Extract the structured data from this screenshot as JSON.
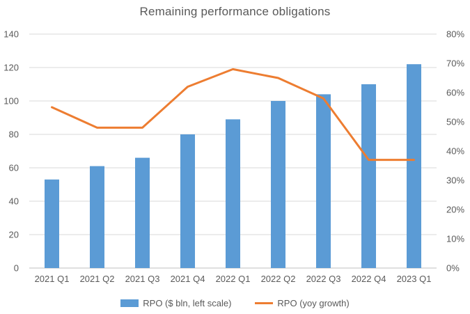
{
  "chart_data": {
    "type": "bar",
    "subtype": "combo-bar-line",
    "title": "Remaining performance obligations",
    "categories": [
      "2021 Q1",
      "2021 Q2",
      "2021 Q3",
      "2021 Q4",
      "2022 Q1",
      "2022 Q2",
      "2022 Q3",
      "2022 Q4",
      "2023 Q1"
    ],
    "series": [
      {
        "name": "RPO ($ bln, left scale)",
        "type": "bar",
        "axis": "left",
        "color": "#5B9BD5",
        "values": [
          53,
          61,
          66,
          80,
          89,
          100,
          104,
          110,
          122
        ]
      },
      {
        "name": "RPO (yoy growth)",
        "type": "line",
        "axis": "right",
        "color": "#ED7D31",
        "unit": "%",
        "values": [
          55,
          48,
          48,
          62,
          68,
          65,
          58,
          37,
          37
        ]
      }
    ],
    "left_axis": {
      "min": 0,
      "max": 140,
      "tick_step": 20,
      "ticks": [
        0,
        20,
        40,
        60,
        80,
        100,
        120,
        140
      ]
    },
    "right_axis": {
      "min": 0,
      "max": 80,
      "tick_step": 10,
      "tick_labels": [
        "0%",
        "10%",
        "20%",
        "30%",
        "40%",
        "50%",
        "60%",
        "70%",
        "80%"
      ]
    },
    "grid": "horizontal",
    "legend_position": "bottom",
    "colors": {
      "gridline": "#D9D9D9",
      "axis_line": "#BFBFBF",
      "text": "#595959",
      "background": "#FFFFFF"
    }
  }
}
